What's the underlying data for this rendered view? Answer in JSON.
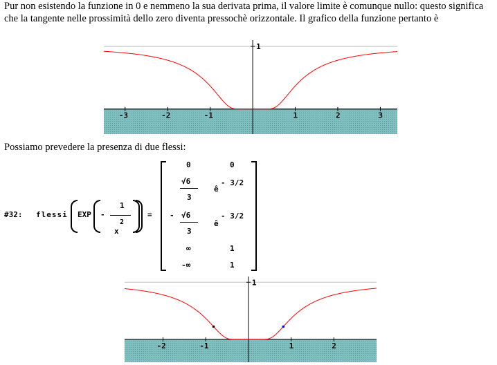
{
  "text": {
    "intro": "Pur non esistendo la funzione in 0 e nemmeno la sua derivata prima, il valore limite è comunque nullo: questo significa che la tangente nelle prossimità dello zero diventa pressochè orizzontale. Il grafico della funzione pertanto è",
    "flessi": "Possiamo prevedere la presenza di due flessi:"
  },
  "formula": {
    "label": "#32:",
    "func": "flessi",
    "exp": "EXP",
    "minus": "-",
    "num": "1",
    "den_base": "x",
    "den_exp": "2",
    "equals": "=",
    "matrix": {
      "r1": [
        "0",
        "0"
      ],
      "r2_num": "√6",
      "r2_den": "3",
      "r2_e": "ê",
      "r2_exp": "- 3/2",
      "r3_sign": "-",
      "r3_num": "√6",
      "r3_den": "3",
      "r3_e": "ê",
      "r3_exp": "- 3/2",
      "r4": [
        "∞",
        "1"
      ],
      "r5": [
        "-∞",
        "1"
      ]
    }
  },
  "chart_data": [
    {
      "type": "line",
      "function": "EXP(-1/x^2)",
      "xlim": [
        -3.5,
        3.4
      ],
      "ylim": [
        -0.4,
        1.1
      ],
      "xticks": [
        "-3",
        "-2",
        "-1",
        "1",
        "2",
        "3"
      ],
      "ytick": "1",
      "line_color": "#ff0000",
      "band_color": "#7fbfbf",
      "reference_line_y": 1
    },
    {
      "type": "line",
      "function": "EXP(-1/x^2)",
      "xlim": [
        -2.9,
        3.0
      ],
      "ylim": [
        -0.4,
        1.1
      ],
      "xticks": [
        "-2",
        "-1",
        "1",
        "2"
      ],
      "ytick": "1",
      "line_color": "#ff0000",
      "band_color": "#7fbfbf",
      "reference_line_y": 1,
      "points": [
        {
          "x": -0.8165,
          "y": 0.2231,
          "color": "#000000"
        },
        {
          "x": 0.8165,
          "y": 0.2231,
          "color": "#0000ff"
        }
      ]
    }
  ]
}
